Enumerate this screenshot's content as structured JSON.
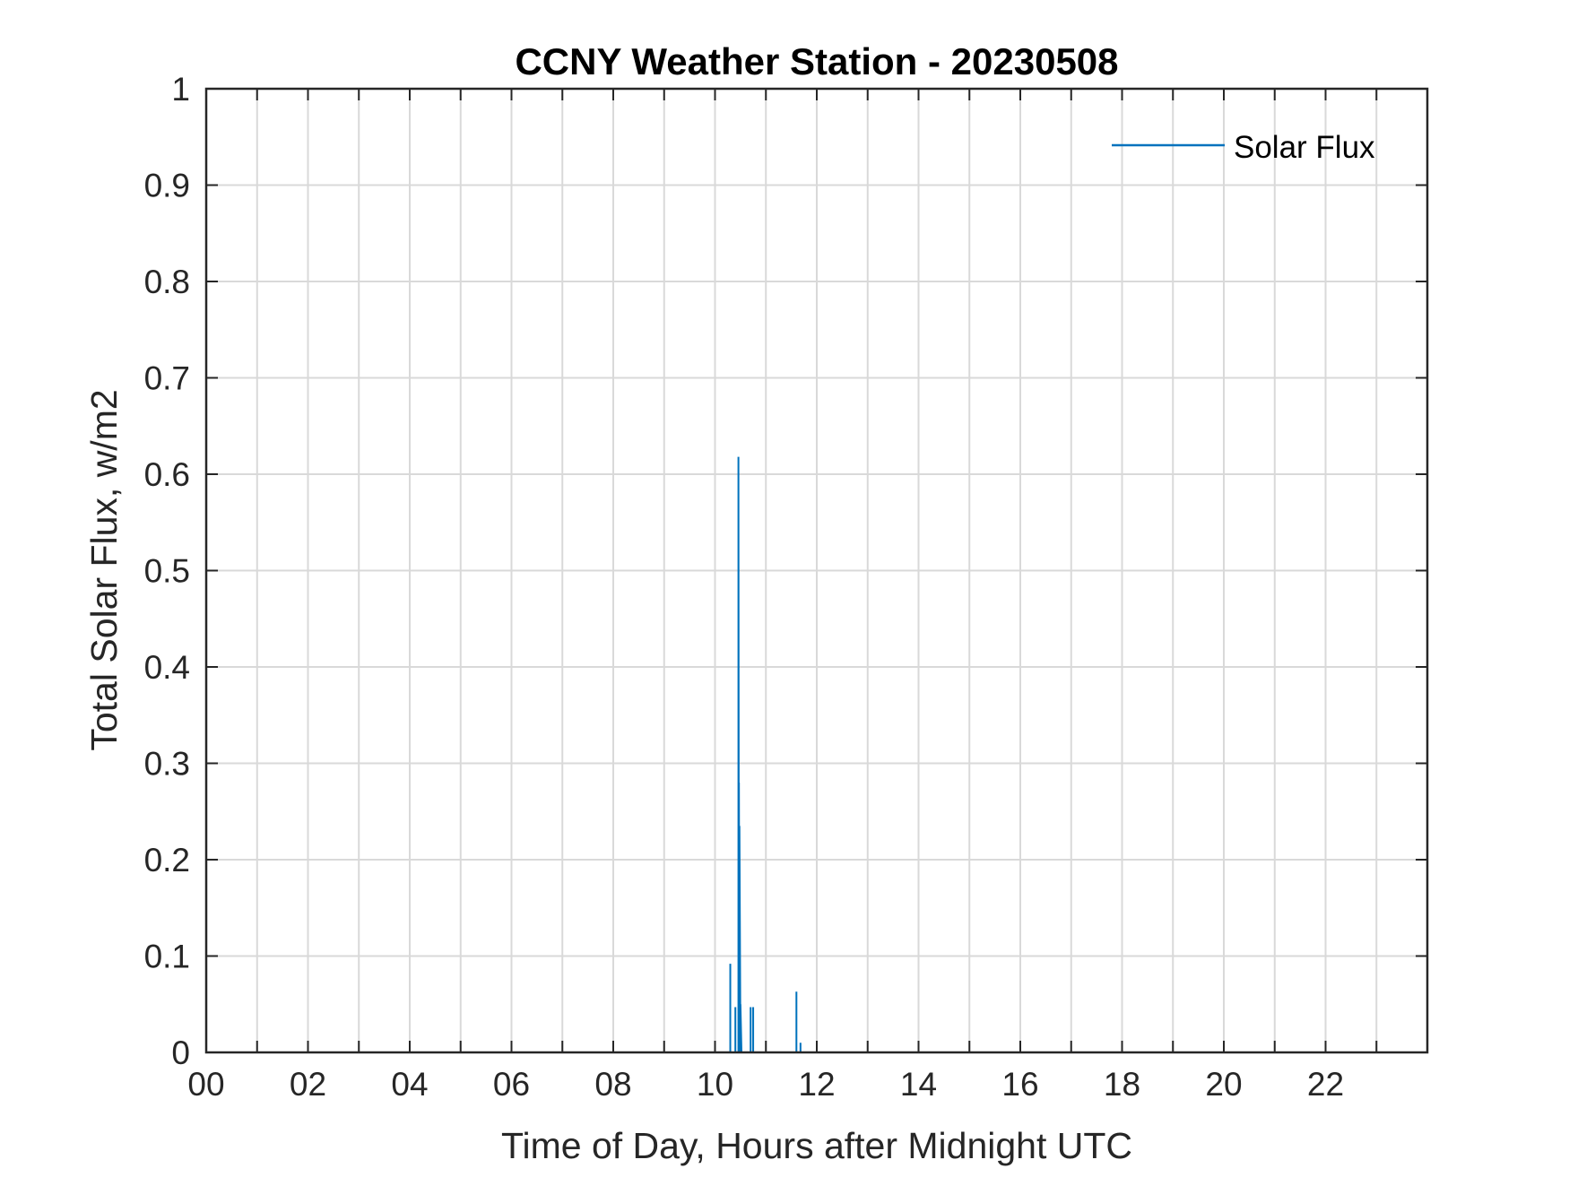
{
  "chart_data": {
    "type": "line",
    "title": "CCNY Weather Station - 20230508",
    "xlabel": "Time of Day, Hours after Midnight UTC",
    "ylabel": "Total Solar Flux, w/m2",
    "xlim": [
      0,
      24
    ],
    "ylim": [
      0,
      1
    ],
    "xticks": [
      0,
      2,
      4,
      6,
      8,
      10,
      12,
      14,
      16,
      18,
      20,
      22
    ],
    "xtick_labels": [
      "00",
      "02",
      "04",
      "06",
      "08",
      "10",
      "12",
      "14",
      "16",
      "18",
      "20",
      "22"
    ],
    "xgrid": [
      0,
      1,
      2,
      3,
      4,
      5,
      6,
      7,
      8,
      9,
      10,
      11,
      12,
      13,
      14,
      15,
      16,
      17,
      18,
      19,
      20,
      21,
      22,
      23,
      24
    ],
    "yticks": [
      0,
      0.1,
      0.2,
      0.3,
      0.4,
      0.5,
      0.6,
      0.7,
      0.8,
      0.9,
      1
    ],
    "ytick_labels": [
      "0",
      "0.1",
      "0.2",
      "0.3",
      "0.4",
      "0.5",
      "0.6",
      "0.7",
      "0.8",
      "0.9",
      "1"
    ],
    "grid": true,
    "legend_position": "top-right",
    "series": [
      {
        "name": "Solar Flux",
        "color": "#0072BD",
        "x": [
          0,
          10.3,
          10.3,
          10.3,
          10.4,
          10.4,
          10.4,
          10.46,
          10.46,
          10.47,
          10.47,
          10.48,
          10.48,
          10.5,
          10.5,
          10.52,
          10.52,
          10.7,
          10.7,
          10.7,
          10.75,
          10.75,
          10.75,
          11.6,
          11.6,
          11.6,
          11.68,
          11.68,
          11.68,
          24
        ],
        "y": [
          0,
          0,
          0.092,
          0,
          0,
          0.047,
          0,
          0,
          0.618,
          0,
          0.28,
          0,
          0.235,
          0,
          0.05,
          0,
          0,
          0,
          0.047,
          0,
          0,
          0.047,
          0,
          0,
          0.063,
          0,
          0,
          0.01,
          0,
          0
        ]
      }
    ]
  }
}
